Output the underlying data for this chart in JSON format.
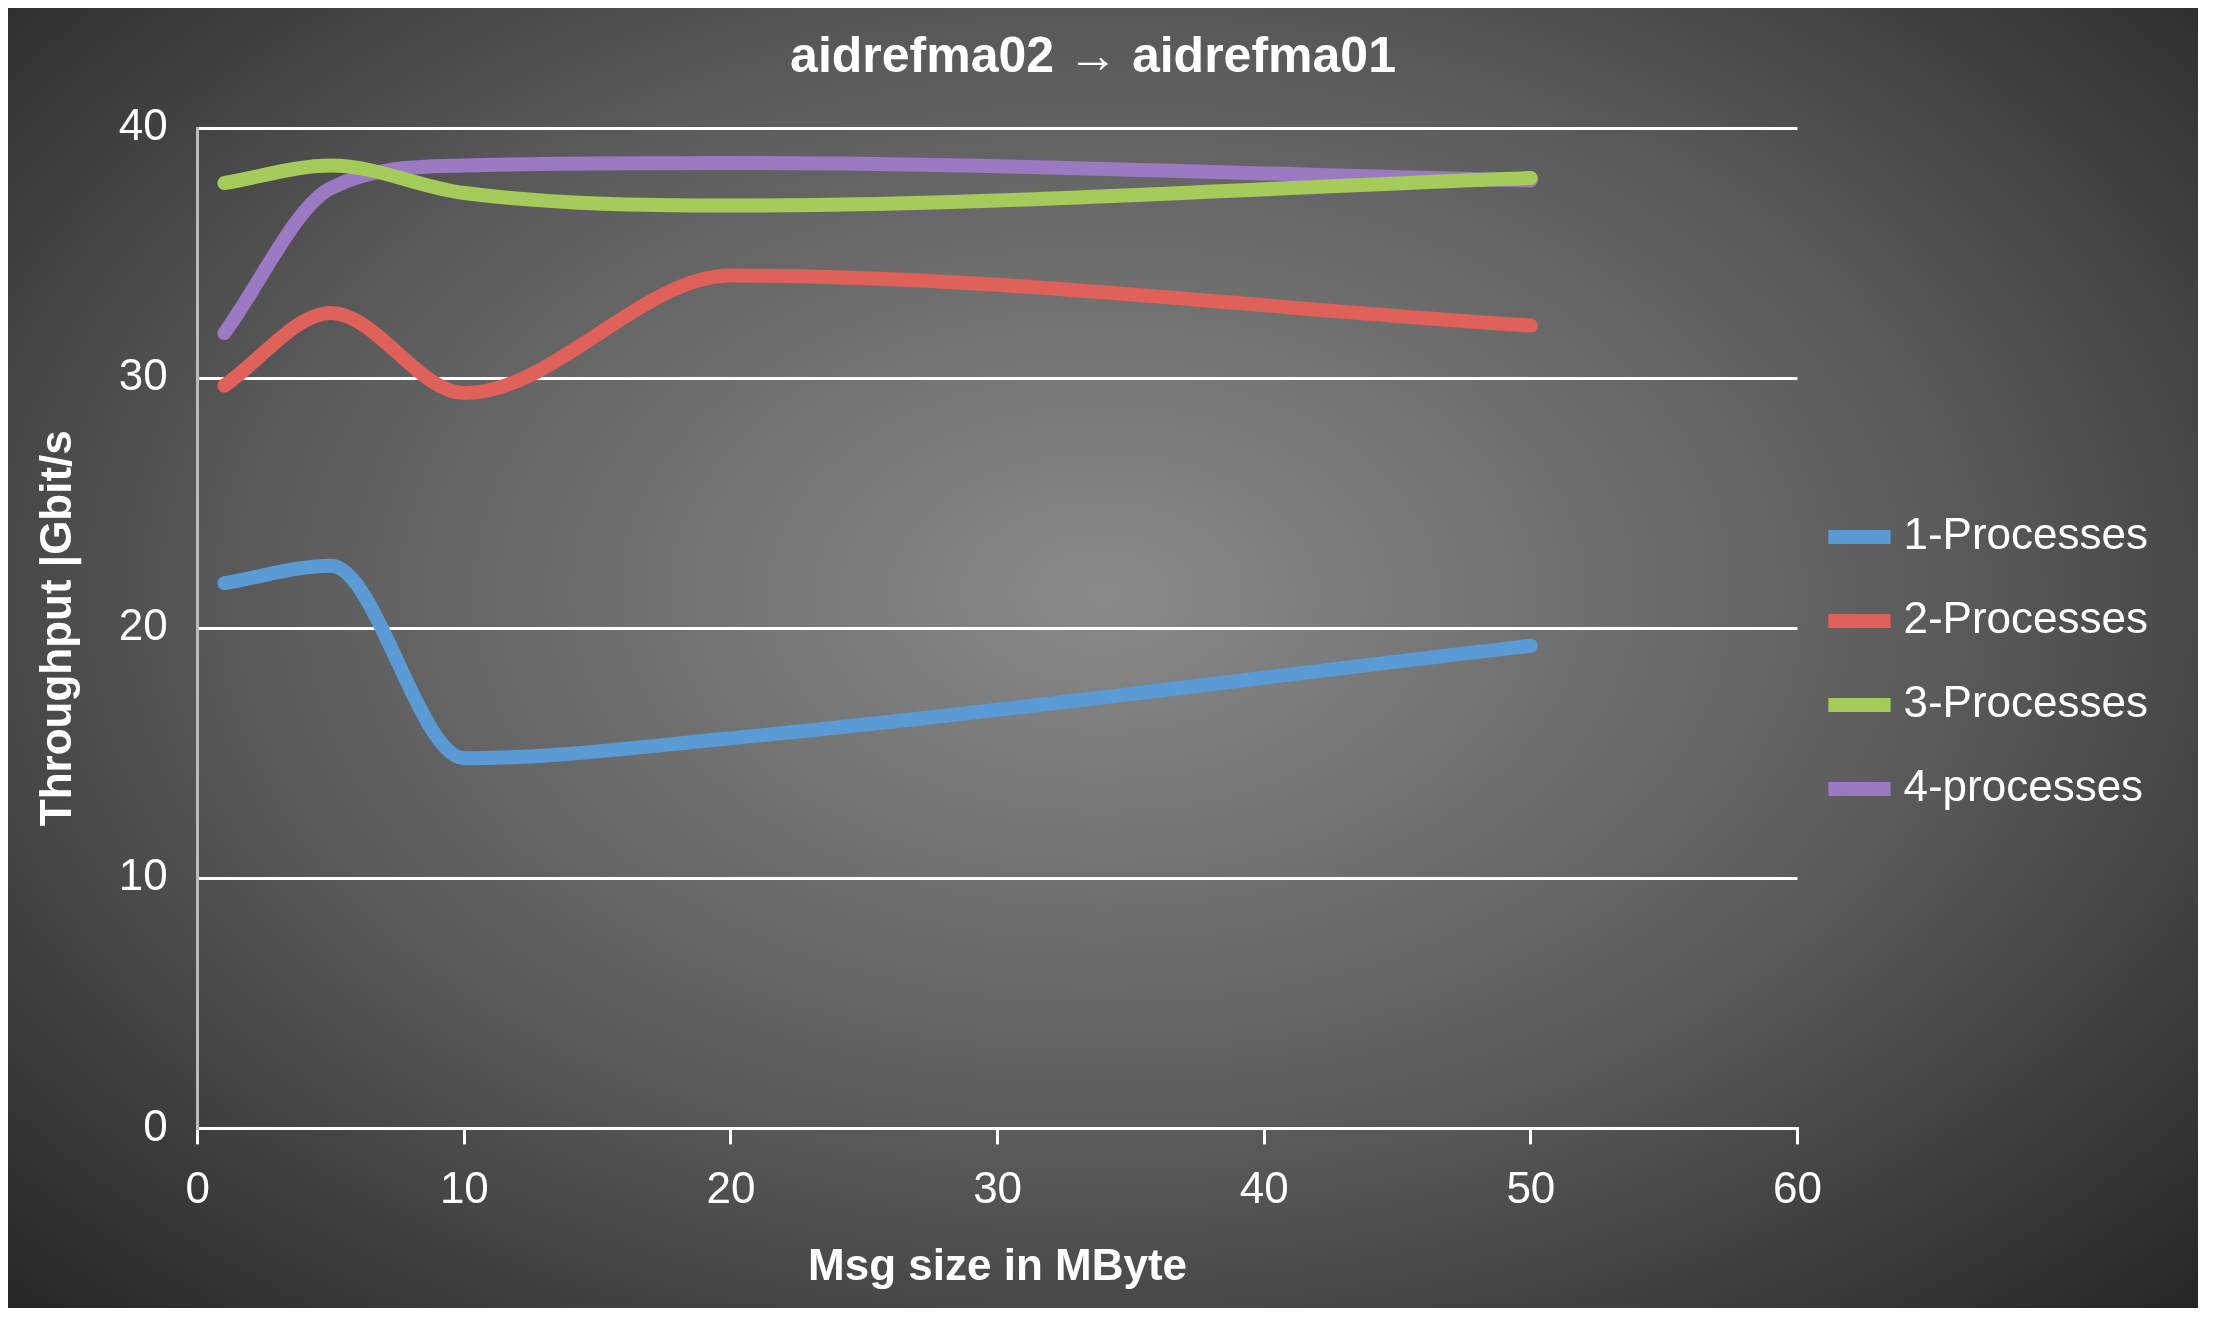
{
  "chart_data": {
    "type": "line",
    "title": "aidrefma02 → aidrefma01",
    "xlabel": "Msg size in MByte",
    "ylabel": "Throughput |Gbit/s",
    "x": [
      1,
      5,
      10,
      20,
      50
    ],
    "series": [
      {
        "name": "1-Processes",
        "color": "#5b9bd5",
        "values": [
          21.8,
          22.5,
          14.8,
          15.6,
          19.3
        ]
      },
      {
        "name": "2-Processes",
        "color": "#e0605a",
        "values": [
          29.7,
          32.6,
          29.4,
          34.1,
          32.1
        ]
      },
      {
        "name": "3-Processes",
        "color": "#a5cc5a",
        "values": [
          37.8,
          38.5,
          37.4,
          36.9,
          38.0
        ]
      },
      {
        "name": "4-processes",
        "color": "#9b79c3",
        "values": [
          31.8,
          37.6,
          38.5,
          38.6,
          37.9
        ]
      }
    ],
    "xlim": [
      0,
      60
    ],
    "xticks": [
      0,
      10,
      20,
      30,
      40,
      50,
      60
    ],
    "ylim": [
      0,
      40
    ],
    "yticks": [
      0,
      10,
      20,
      30,
      40
    ],
    "grid": "y",
    "legend": "right",
    "marker": "none",
    "line_style": "solid"
  }
}
